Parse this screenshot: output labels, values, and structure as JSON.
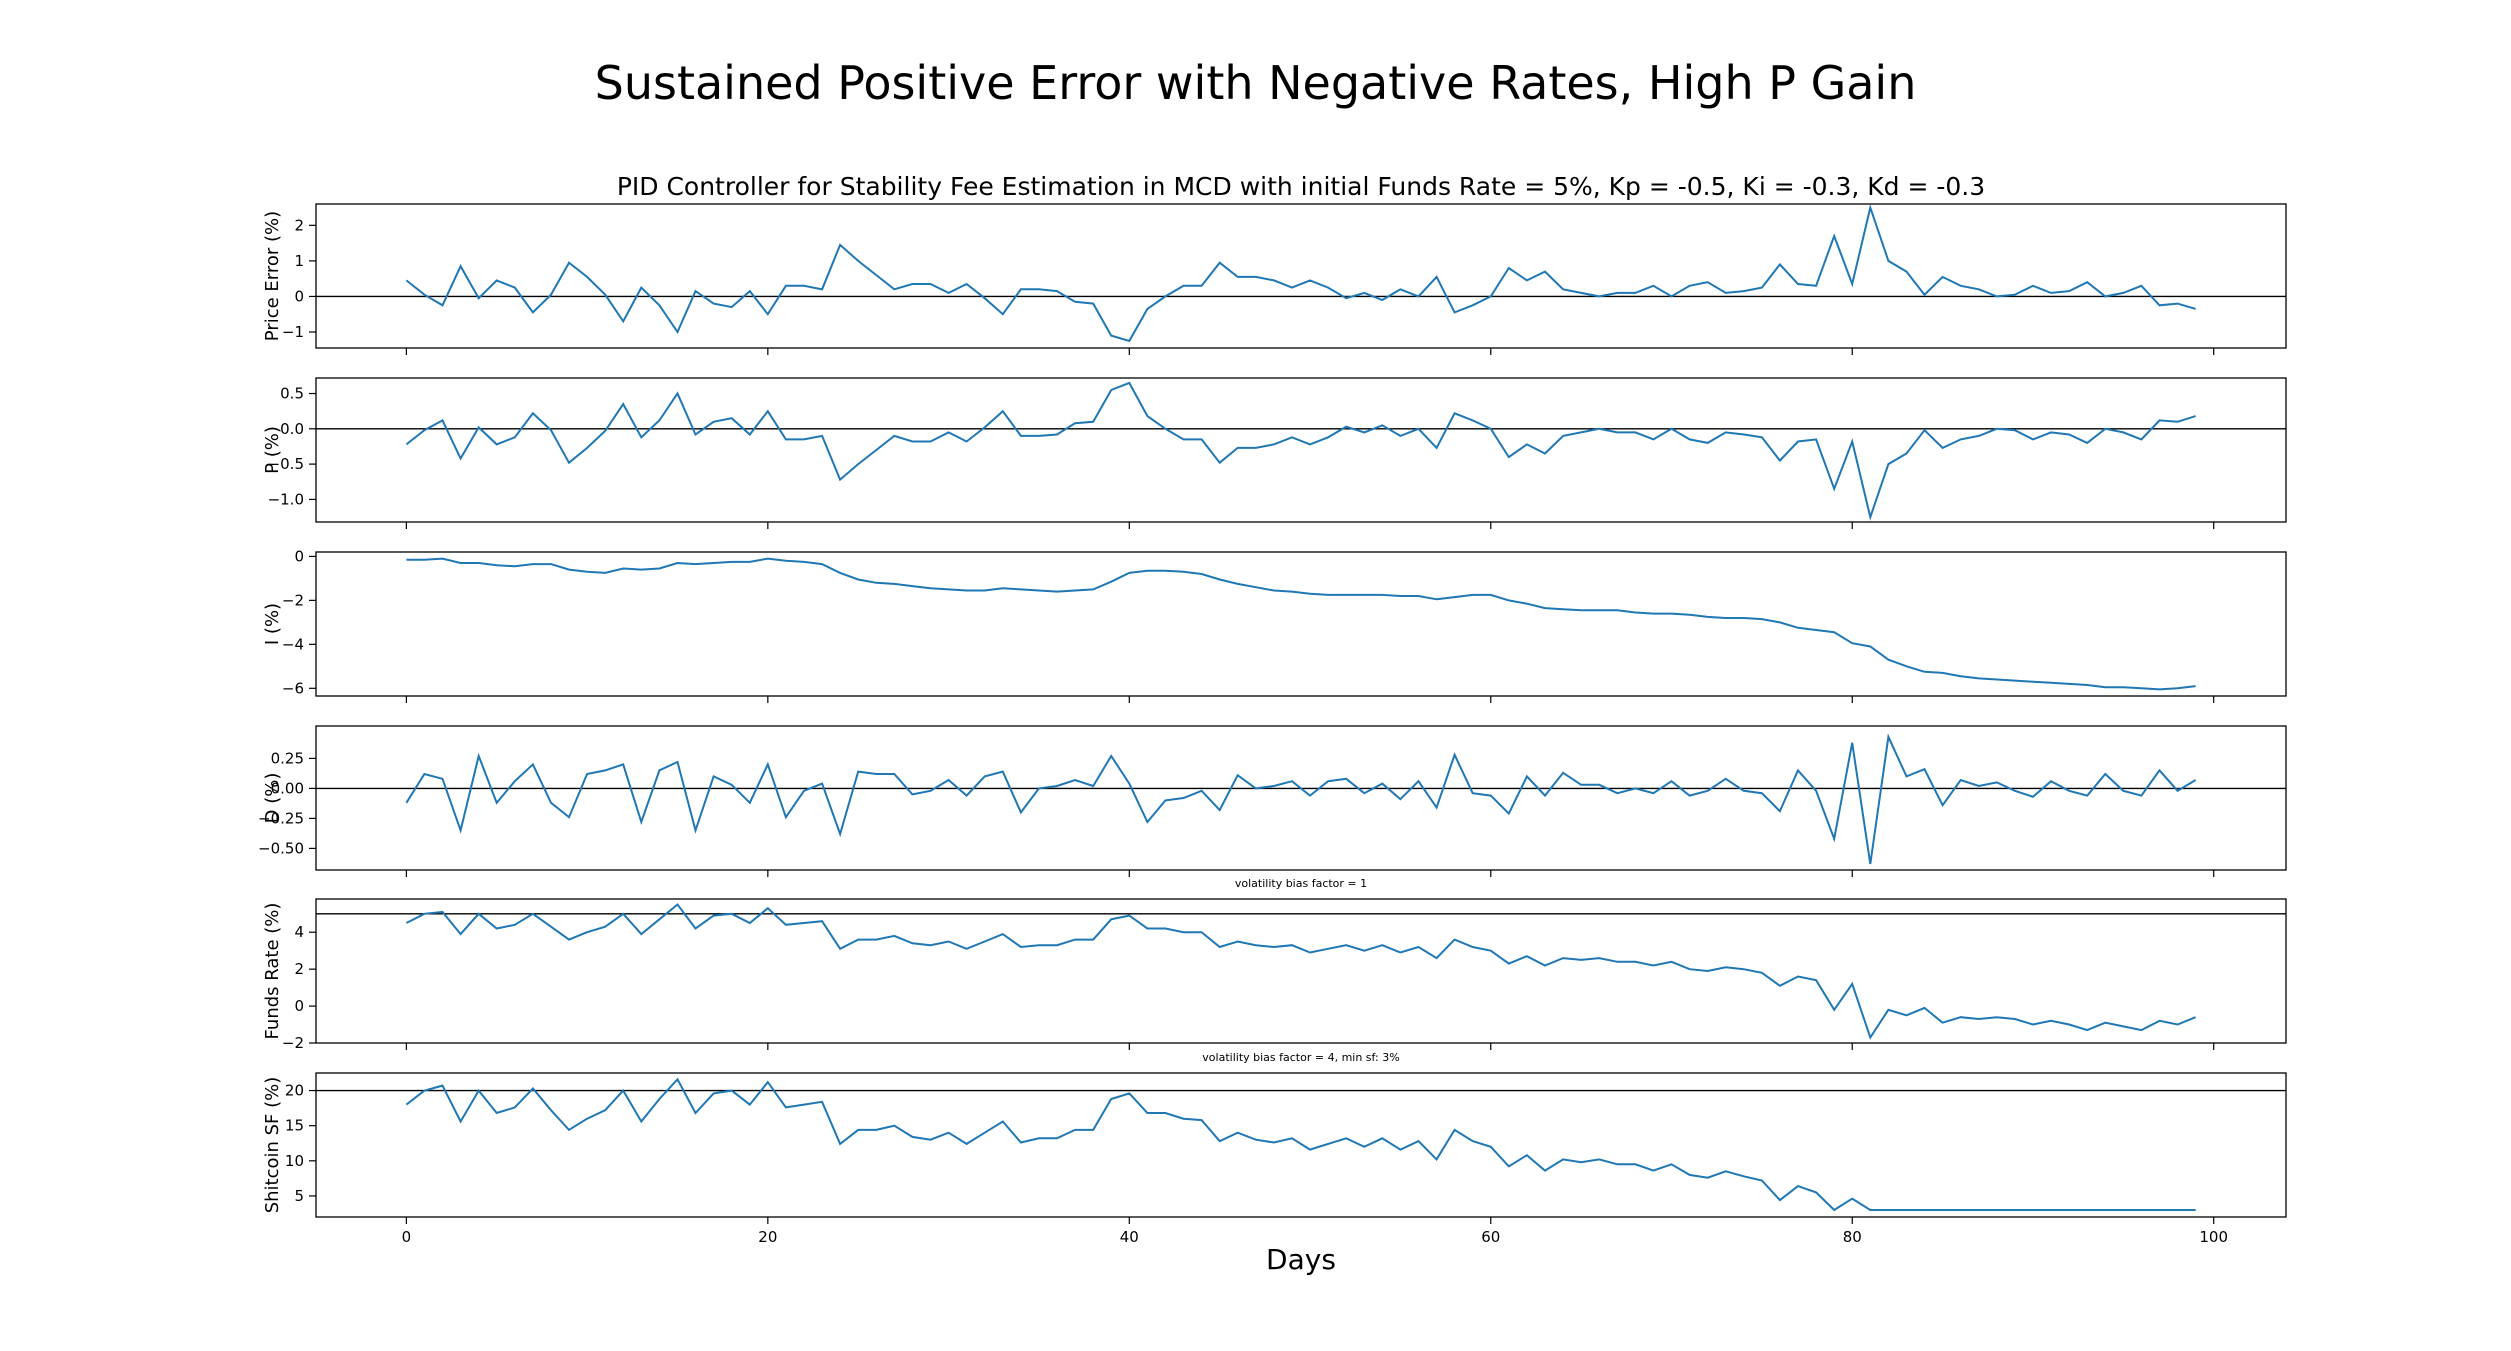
{
  "title": "Sustained Positive Error with Negative Rates, High P Gain",
  "chart_data": {
    "type": "line",
    "title": "Sustained Positive Error with Negative Rates, High P Gain",
    "subtitle": "PID Controller for Stability Fee Estimation in MCD with initial Funds Rate = 5%, Kp = -0.5, Ki = -0.3, Kd = -0.3",
    "xlabel": "Days",
    "xlim": [
      -5,
      104
    ],
    "xticks": [
      0,
      20,
      40,
      60,
      80,
      100
    ],
    "line_color": "#1f77b4",
    "panels": [
      {
        "id": "price_error",
        "ylabel": "Price Error (%)",
        "ylim": [
          -1.45,
          2.6
        ],
        "yticks": [
          -1,
          0,
          1,
          2
        ],
        "ytick_labels": [
          "−1",
          "0",
          "1",
          "2"
        ],
        "hline": 0,
        "annotation": "",
        "values": [
          0.45,
          0.05,
          -0.25,
          0.85,
          -0.05,
          0.45,
          0.25,
          -0.45,
          0.05,
          0.95,
          0.55,
          0.05,
          -0.7,
          0.25,
          -0.25,
          -1.0,
          0.15,
          -0.2,
          -0.3,
          0.15,
          -0.5,
          0.3,
          0.3,
          0.2,
          1.45,
          1.0,
          0.6,
          0.2,
          0.35,
          0.35,
          0.1,
          0.35,
          -0.05,
          -0.5,
          0.2,
          0.2,
          0.15,
          -0.15,
          -0.2,
          -1.1,
          -1.25,
          -0.35,
          0.0,
          0.3,
          0.3,
          0.95,
          0.55,
          0.55,
          0.45,
          0.25,
          0.45,
          0.25,
          -0.05,
          0.1,
          -0.1,
          0.2,
          0.0,
          0.55,
          -0.45,
          -0.25,
          0.0,
          0.8,
          0.45,
          0.7,
          0.2,
          0.1,
          0.0,
          0.1,
          0.1,
          0.3,
          0.0,
          0.3,
          0.4,
          0.1,
          0.15,
          0.25,
          0.9,
          0.35,
          0.3,
          1.7,
          0.35,
          2.5,
          1.0,
          0.7,
          0.05,
          0.55,
          0.3,
          0.2,
          0.0,
          0.05,
          0.3,
          0.1,
          0.15,
          0.4,
          0.0,
          0.1,
          0.3,
          -0.25,
          -0.2,
          -0.35
        ]
      },
      {
        "id": "p",
        "ylabel": "P (%)",
        "ylim": [
          -1.32,
          0.72
        ],
        "yticks": [
          -1.0,
          -0.5,
          0.0,
          0.5
        ],
        "ytick_labels": [
          "−1.0",
          "−0.5",
          "0.0",
          "0.5"
        ],
        "hline": 0,
        "annotation": "",
        "values": [
          -0.22,
          -0.02,
          0.12,
          -0.42,
          0.02,
          -0.22,
          -0.12,
          0.22,
          -0.02,
          -0.48,
          -0.27,
          -0.03,
          0.35,
          -0.12,
          0.12,
          0.5,
          -0.08,
          0.1,
          0.15,
          -0.08,
          0.25,
          -0.15,
          -0.15,
          -0.1,
          -0.72,
          -0.5,
          -0.3,
          -0.1,
          -0.18,
          -0.18,
          -0.05,
          -0.18,
          0.02,
          0.25,
          -0.1,
          -0.1,
          -0.08,
          0.08,
          0.1,
          0.55,
          0.65,
          0.18,
          0.0,
          -0.15,
          -0.15,
          -0.48,
          -0.27,
          -0.27,
          -0.22,
          -0.12,
          -0.22,
          -0.12,
          0.03,
          -0.05,
          0.05,
          -0.1,
          0.0,
          -0.27,
          0.22,
          0.12,
          0.0,
          -0.4,
          -0.22,
          -0.35,
          -0.1,
          -0.05,
          0.0,
          -0.05,
          -0.05,
          -0.15,
          0.0,
          -0.15,
          -0.2,
          -0.05,
          -0.08,
          -0.12,
          -0.45,
          -0.18,
          -0.15,
          -0.85,
          -0.18,
          -1.25,
          -0.5,
          -0.35,
          -0.02,
          -0.27,
          -0.15,
          -0.1,
          0.0,
          -0.02,
          -0.15,
          -0.05,
          -0.08,
          -0.2,
          0.0,
          -0.05,
          -0.15,
          0.12,
          0.1,
          0.18
        ]
      },
      {
        "id": "i",
        "ylabel": "I (%)",
        "ylim": [
          -6.35,
          0.2
        ],
        "yticks": [
          -6,
          -4,
          -2,
          0
        ],
        "ytick_labels": [
          "−6",
          "−4",
          "−2",
          "0"
        ],
        "hline": null,
        "annotation": "",
        "values": [
          -0.15,
          -0.15,
          -0.1,
          -0.3,
          -0.3,
          -0.4,
          -0.45,
          -0.35,
          -0.35,
          -0.6,
          -0.7,
          -0.75,
          -0.55,
          -0.6,
          -0.55,
          -0.3,
          -0.35,
          -0.3,
          -0.25,
          -0.25,
          -0.1,
          -0.2,
          -0.25,
          -0.35,
          -0.75,
          -1.05,
          -1.2,
          -1.25,
          -1.35,
          -1.45,
          -1.5,
          -1.55,
          -1.55,
          -1.45,
          -1.5,
          -1.55,
          -1.6,
          -1.55,
          -1.5,
          -1.15,
          -0.75,
          -0.65,
          -0.65,
          -0.7,
          -0.8,
          -1.05,
          -1.25,
          -1.4,
          -1.55,
          -1.6,
          -1.7,
          -1.75,
          -1.75,
          -1.75,
          -1.75,
          -1.8,
          -1.8,
          -1.95,
          -1.85,
          -1.75,
          -1.75,
          -2.0,
          -2.15,
          -2.35,
          -2.4,
          -2.45,
          -2.45,
          -2.45,
          -2.55,
          -2.6,
          -2.6,
          -2.65,
          -2.75,
          -2.8,
          -2.8,
          -2.85,
          -3.0,
          -3.25,
          -3.35,
          -3.45,
          -3.95,
          -4.1,
          -4.7,
          -5.0,
          -5.25,
          -5.3,
          -5.45,
          -5.55,
          -5.6,
          -5.65,
          -5.7,
          -5.75,
          -5.8,
          -5.85,
          -5.95,
          -5.95,
          -6.0,
          -6.05,
          -6.0,
          -5.9
        ]
      },
      {
        "id": "d",
        "ylabel": "D (%)",
        "ylim": [
          -0.68,
          0.52
        ],
        "yticks": [
          -0.5,
          -0.25,
          0.0,
          0.25
        ],
        "ytick_labels": [
          "−0.50",
          "−0.25",
          "0.00",
          "0.25"
        ],
        "hline": 0,
        "annotation": "",
        "values": [
          -0.12,
          0.12,
          0.08,
          -0.35,
          0.27,
          -0.12,
          0.06,
          0.2,
          -0.12,
          -0.24,
          0.12,
          0.15,
          0.2,
          -0.28,
          0.15,
          0.22,
          -0.35,
          0.1,
          0.03,
          -0.12,
          0.2,
          -0.24,
          -0.02,
          0.04,
          -0.38,
          0.14,
          0.12,
          0.12,
          -0.05,
          -0.02,
          0.07,
          -0.06,
          0.1,
          0.14,
          -0.2,
          0.0,
          0.02,
          0.07,
          0.02,
          0.27,
          0.04,
          -0.28,
          -0.1,
          -0.08,
          -0.02,
          -0.18,
          0.11,
          0.0,
          0.02,
          0.06,
          -0.06,
          0.06,
          0.08,
          -0.04,
          0.04,
          -0.09,
          0.06,
          -0.16,
          0.28,
          -0.04,
          -0.06,
          -0.21,
          0.1,
          -0.06,
          0.13,
          0.03,
          0.03,
          -0.04,
          0.0,
          -0.04,
          0.06,
          -0.06,
          -0.02,
          0.08,
          -0.02,
          -0.04,
          -0.19,
          0.15,
          -0.02,
          -0.42,
          0.38,
          -0.63,
          0.43,
          0.1,
          0.16,
          -0.14,
          0.07,
          0.02,
          0.05,
          -0.02,
          -0.07,
          0.06,
          -0.02,
          -0.06,
          0.12,
          -0.02,
          -0.06,
          0.15,
          -0.02,
          0.07
        ]
      },
      {
        "id": "funds_rate",
        "ylabel": "Funds Rate (%)",
        "ylim": [
          -2.0,
          5.8
        ],
        "yticks": [
          -2,
          0,
          2,
          4
        ],
        "ytick_labels": [
          "−2",
          "0",
          "2",
          "4"
        ],
        "hline": 5,
        "annotation": "volatility bias factor = 1",
        "values": [
          4.5,
          5.0,
          5.1,
          3.9,
          5.0,
          4.2,
          4.4,
          5.0,
          4.3,
          3.6,
          4.0,
          4.3,
          5.0,
          3.9,
          4.7,
          5.5,
          4.2,
          4.9,
          5.0,
          4.5,
          5.3,
          4.4,
          4.5,
          4.6,
          3.1,
          3.6,
          3.6,
          3.8,
          3.4,
          3.3,
          3.5,
          3.1,
          3.5,
          3.9,
          3.2,
          3.3,
          3.3,
          3.6,
          3.6,
          4.7,
          4.9,
          4.2,
          4.2,
          4.0,
          4.0,
          3.2,
          3.5,
          3.3,
          3.2,
          3.3,
          2.9,
          3.1,
          3.3,
          3.0,
          3.3,
          2.9,
          3.2,
          2.6,
          3.6,
          3.2,
          3.0,
          2.3,
          2.7,
          2.2,
          2.6,
          2.5,
          2.6,
          2.4,
          2.4,
          2.2,
          2.4,
          2.0,
          1.9,
          2.1,
          2.0,
          1.8,
          1.1,
          1.6,
          1.4,
          -0.2,
          1.2,
          -1.7,
          -0.2,
          -0.5,
          -0.1,
          -0.9,
          -0.6,
          -0.7,
          -0.6,
          -0.7,
          -1.0,
          -0.8,
          -1.0,
          -1.3,
          -0.9,
          -1.1,
          -1.3,
          -0.8,
          -1.0,
          -0.6
        ]
      },
      {
        "id": "shitcoin_sf",
        "ylabel": "Shitcoin SF (%)",
        "ylim": [
          2.0,
          22.5
        ],
        "yticks": [
          5,
          10,
          15,
          20
        ],
        "ytick_labels": [
          "5",
          "10",
          "15",
          "20"
        ],
        "hline": 20,
        "annotation": "volatility bias factor = 4, min sf: 3%",
        "values": [
          18.0,
          20.0,
          20.7,
          15.6,
          20.0,
          16.8,
          17.6,
          20.3,
          17.2,
          14.4,
          16.0,
          17.2,
          20.0,
          15.6,
          18.8,
          21.6,
          16.8,
          19.6,
          20.0,
          18.0,
          21.2,
          17.6,
          18.0,
          18.4,
          12.4,
          14.4,
          14.4,
          15.0,
          13.4,
          13.0,
          14.0,
          12.4,
          14.0,
          15.6,
          12.6,
          13.2,
          13.2,
          14.4,
          14.4,
          18.8,
          19.6,
          16.8,
          16.8,
          16.0,
          15.8,
          12.8,
          14.0,
          13.0,
          12.6,
          13.2,
          11.6,
          12.4,
          13.2,
          12.0,
          13.2,
          11.6,
          12.8,
          10.2,
          14.4,
          12.8,
          12.0,
          9.2,
          10.8,
          8.6,
          10.2,
          9.8,
          10.2,
          9.5,
          9.5,
          8.6,
          9.5,
          8.0,
          7.6,
          8.5,
          7.8,
          7.2,
          4.4,
          6.4,
          5.5,
          3.0,
          4.6,
          3.0,
          3.0,
          3.0,
          3.0,
          3.0,
          3.0,
          3.0,
          3.0,
          3.0,
          3.0,
          3.0,
          3.0,
          3.0,
          3.0,
          3.0,
          3.0,
          3.0,
          3.0,
          3.0
        ]
      }
    ]
  }
}
